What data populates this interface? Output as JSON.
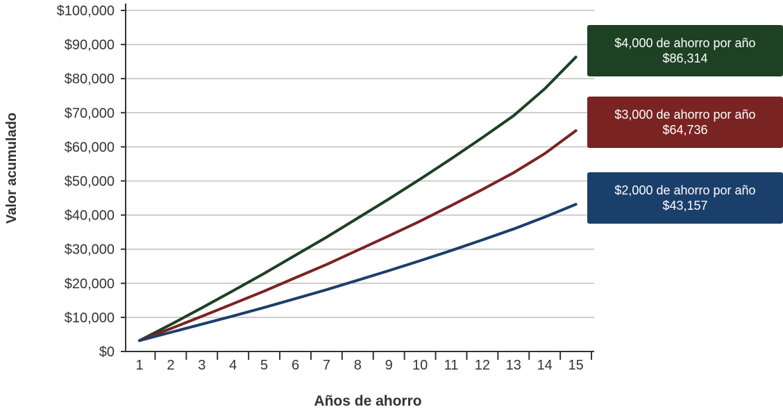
{
  "chart_data": {
    "type": "line",
    "x": [
      1,
      2,
      3,
      4,
      5,
      6,
      7,
      8,
      9,
      10,
      11,
      12,
      13,
      14,
      15
    ],
    "xlabel": "Años de ahorro",
    "ylabel": "Valor acumulado",
    "ylim": [
      0,
      100000
    ],
    "y_ticks": [
      0,
      10000,
      20000,
      30000,
      40000,
      50000,
      60000,
      70000,
      80000,
      90000,
      100000
    ],
    "y_tick_labels": [
      "$0",
      "$10,000",
      "$20,000",
      "$30,000",
      "$40,000",
      "$50,000",
      "$60,000",
      "$70,000",
      "$80,000",
      "$90,000",
      "$100,000"
    ],
    "x_tick_labels": [
      "1",
      "2",
      "3",
      "4",
      "5",
      "6",
      "7",
      "8",
      "9",
      "10",
      "11",
      "12",
      "13",
      "14",
      "15"
    ],
    "grid": true,
    "series": [
      {
        "name": "$4,000 de ahorro por año",
        "final_label": "$86,314",
        "color": "#1e4023",
        "values": [
          3200,
          7900,
          12800,
          17800,
          22900,
          28200,
          33500,
          39100,
          44700,
          50500,
          56500,
          62700,
          69100,
          77000,
          86314
        ]
      },
      {
        "name": "$3,000 de ahorro por año",
        "final_label": "$64,736",
        "color": "#7a2323",
        "values": [
          3200,
          6700,
          10300,
          14000,
          17700,
          21600,
          25500,
          29700,
          33900,
          38200,
          42800,
          47500,
          52400,
          58000,
          64736
        ]
      },
      {
        "name": "$2,000 de ahorro por año",
        "final_label": "$43,157",
        "color": "#1b3f6b",
        "values": [
          3200,
          5600,
          8000,
          10400,
          12900,
          15500,
          18100,
          20900,
          23700,
          26600,
          29600,
          32700,
          35900,
          39400,
          43157
        ]
      }
    ]
  }
}
